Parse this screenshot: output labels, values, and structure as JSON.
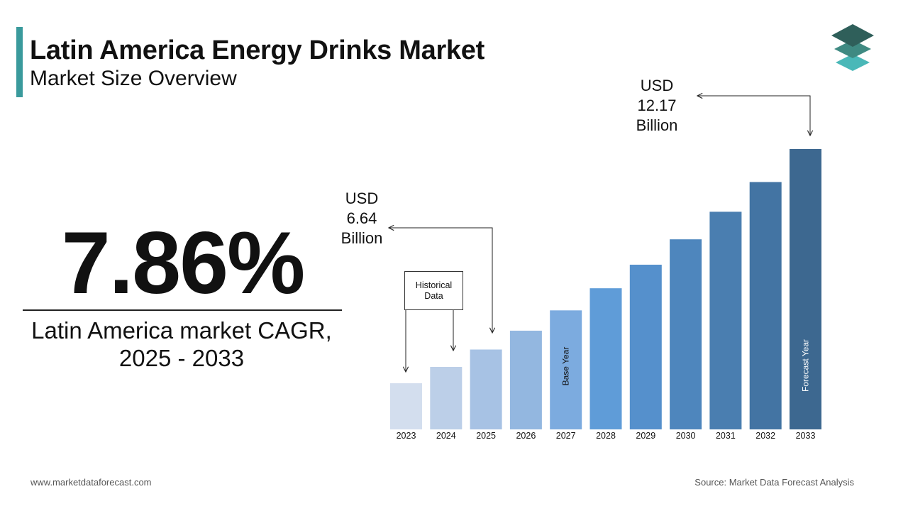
{
  "header": {
    "title": "Latin America Energy Drinks Market",
    "subtitle": "Market Size Overview"
  },
  "cagr": {
    "value": "7.86%",
    "label_line1": "Latin America market CAGR,",
    "label_line2": "2025 - 2033"
  },
  "callouts": {
    "start": {
      "line1": "USD",
      "line2": "6.64",
      "line3": "Billion"
    },
    "end": {
      "line1": "USD",
      "line2": "12.17",
      "line3": "Billion"
    },
    "historical": {
      "line1": "Historical",
      "line2": "Data"
    }
  },
  "footer": {
    "website": "www.marketdataforecast.com",
    "source": "Source: Market Data Forecast Analysis"
  },
  "colors": {
    "accent": "#3a9a9c",
    "logo_top": "#2f5f5a",
    "logo_mid": "#3f8a82",
    "logo_bottom": "#4ab8b8"
  },
  "chart_data": {
    "type": "bar",
    "categories": [
      "2023",
      "2024",
      "2025",
      "2026",
      "2027",
      "2028",
      "2029",
      "2030",
      "2031",
      "2032",
      "2033"
    ],
    "values": [
      5.71,
      6.16,
      6.64,
      7.16,
      7.72,
      8.33,
      8.98,
      9.68,
      10.44,
      11.26,
      12.17
    ],
    "bar_colors": [
      "#d3deee",
      "#bccfe8",
      "#a7c2e4",
      "#93b7e0",
      "#7cabdf",
      "#5f9cd8",
      "#5590cc",
      "#4e86bd",
      "#4a7eb0",
      "#4374a3",
      "#3d6890"
    ],
    "bar_labels": {
      "2027": "Base Year",
      "2033": "Forecast Year"
    },
    "title": "",
    "xlabel": "",
    "ylabel": "",
    "grid": false
  }
}
